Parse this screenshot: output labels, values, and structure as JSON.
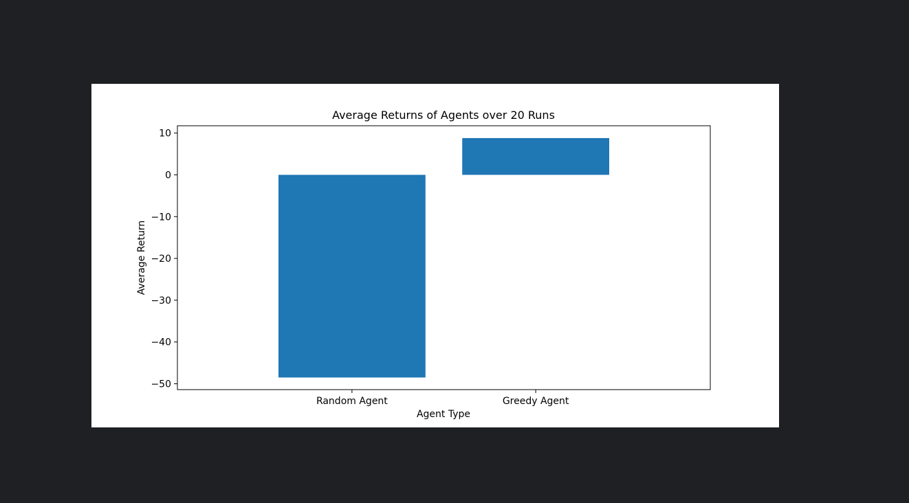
{
  "viewer": {
    "background": "#1f2023"
  },
  "chart_data": {
    "type": "bar",
    "title": "Average Returns of Agents over 20 Runs",
    "xlabel": "Agent Type",
    "ylabel": "Average Return",
    "categories": [
      "Random Agent",
      "Greedy Agent"
    ],
    "values": [
      -48.5,
      8.8
    ],
    "ylim": [
      -51.4,
      11.75
    ],
    "yticks": [
      10,
      0,
      -10,
      -20,
      -30,
      -40,
      -50
    ],
    "ytick_labels": [
      "10",
      "0",
      "−10",
      "−20",
      "−30",
      "−40",
      "−50"
    ],
    "bar_color": "#1f77b4",
    "grid": false,
    "legend": "none"
  }
}
